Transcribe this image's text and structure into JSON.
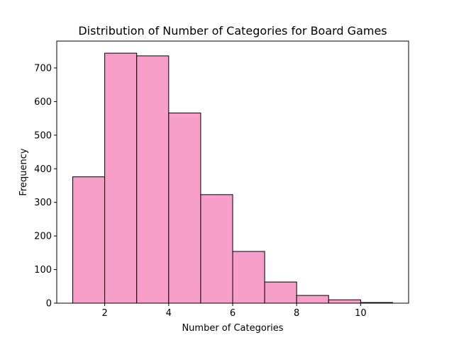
{
  "chart_data": {
    "type": "bar",
    "title": "Distribution of Number of Categories for Board Games",
    "xlabel": "Number of Categories",
    "ylabel": "Frequency",
    "bin_edges": [
      1,
      2,
      3,
      4,
      5,
      6,
      7,
      8,
      9,
      10,
      11
    ],
    "values": [
      376,
      744,
      736,
      566,
      323,
      154,
      63,
      23,
      10,
      2
    ],
    "xlim": [
      0.5,
      11.5
    ],
    "ylim": [
      0,
      780
    ],
    "xticks": [
      2,
      4,
      6,
      8,
      10
    ],
    "xtick_labels": [
      "2",
      "4",
      "6",
      "8",
      "10"
    ],
    "yticks": [
      0,
      100,
      200,
      300,
      400,
      500,
      600,
      700
    ],
    "ytick_labels": [
      "0",
      "100",
      "200",
      "300",
      "400",
      "500",
      "600",
      "700"
    ],
    "grid": false,
    "colors": {
      "bar_fill": "#f79fc8",
      "bar_edge": "#000000"
    }
  }
}
